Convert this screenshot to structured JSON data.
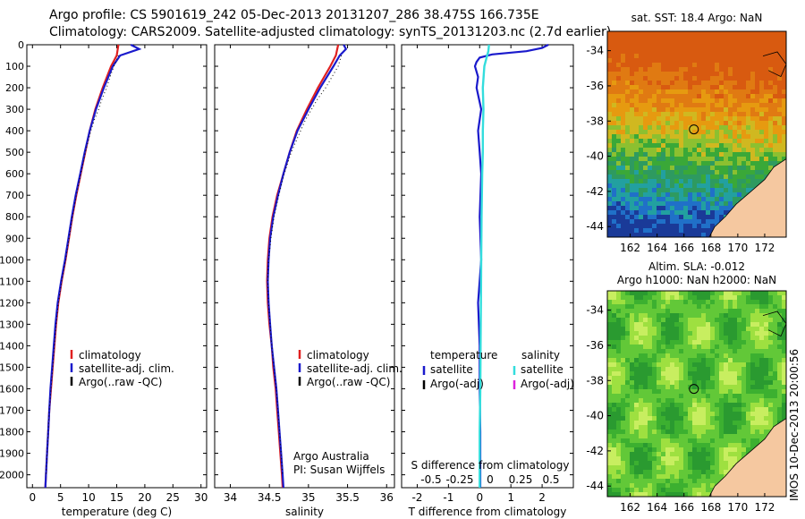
{
  "header": {
    "line1": "Argo profile: CS 5901619_242 05-Dec-2013 20131207_286 38.475S 166.735E",
    "line2": "Climatology: CARS2009. Satellite-adjusted climatology: synTS_20131203.nc (2.7d earlier)"
  },
  "side_stamp": "IMOS 10-Dec-2013 20:00:56",
  "colors": {
    "climatology": "#e02020",
    "satellite": "#1a1acc",
    "argo": "#000000",
    "salinity_satellite": "#33dddd",
    "salinity_argo": "#dd22dd",
    "land": "#f5c8a0"
  },
  "chart_data": [
    {
      "type": "line",
      "xlabel": "temperature (deg C)",
      "ylabel": "",
      "xlim": [
        -1,
        31
      ],
      "ylim": [
        2060,
        0
      ],
      "xticks": [
        0,
        5,
        10,
        15,
        20,
        25,
        30
      ],
      "yticks": [
        0,
        100,
        200,
        300,
        400,
        500,
        600,
        700,
        800,
        900,
        1000,
        1100,
        1200,
        1300,
        1400,
        1500,
        1600,
        1700,
        1800,
        1900,
        2000
      ],
      "legend": [
        "climatology",
        "satellite-adj. clim.",
        "Argo(..raw -QC)"
      ],
      "legend_placement": "lower-center",
      "series": [
        {
          "name": "climatology",
          "depth": [
            0,
            50,
            100,
            200,
            300,
            400,
            500,
            600,
            700,
            800,
            900,
            1000,
            1100,
            1200,
            1300,
            1400,
            1500,
            1600,
            1700,
            1800,
            1900,
            2000,
            2060
          ],
          "values": [
            15.3,
            15.0,
            14.0,
            12.5,
            11.2,
            10.2,
            9.4,
            8.6,
            7.8,
            7.1,
            6.5,
            5.9,
            5.2,
            4.6,
            4.2,
            3.9,
            3.6,
            3.3,
            3.0,
            2.8,
            2.6,
            2.4,
            2.3
          ]
        },
        {
          "name": "satellite-adj. clim.",
          "depth": [
            0,
            20,
            50,
            100,
            200,
            300,
            400,
            500,
            600,
            700,
            800,
            900,
            1000,
            1100,
            1200,
            1300,
            1400,
            1500,
            1600,
            1700,
            1800,
            1900,
            2000,
            2060
          ],
          "values": [
            17.5,
            19.0,
            15.6,
            14.3,
            12.7,
            11.3,
            10.2,
            9.3,
            8.5,
            7.7,
            7.0,
            6.4,
            5.8,
            5.1,
            4.5,
            4.1,
            3.8,
            3.5,
            3.2,
            3.0,
            2.8,
            2.6,
            2.4,
            2.3
          ]
        },
        {
          "name": "Argo(..raw -QC)",
          "depth": [
            50,
            100,
            150,
            200,
            250,
            300,
            350,
            400,
            450,
            500,
            600,
            700,
            800,
            900,
            1000,
            1100,
            1200,
            1300,
            1400,
            1500,
            1600,
            1700,
            1800,
            1900,
            2000
          ],
          "values": [
            15.3,
            14.5,
            13.8,
            13.2,
            12.4,
            11.8,
            11.0,
            10.4,
            9.9,
            9.4,
            8.6,
            7.8,
            7.1,
            6.5,
            5.9,
            5.2,
            4.6,
            4.2,
            3.9,
            3.6,
            3.3,
            3.0,
            2.8,
            2.6,
            2.4
          ]
        }
      ]
    },
    {
      "type": "line",
      "xlabel": "salinity",
      "ylabel": "",
      "xlim": [
        33.8,
        36.1
      ],
      "ylim": [
        2060,
        0
      ],
      "xticks": [
        34,
        34.5,
        35,
        35.5,
        36
      ],
      "legend": [
        "climatology",
        "satellite-adj. clim.",
        "Argo(..raw -QC)"
      ],
      "legend_placement": "lower-right",
      "annotation": [
        "Argo Australia",
        "PI: Susan Wijffels"
      ],
      "series": [
        {
          "name": "climatology",
          "depth": [
            0,
            50,
            100,
            200,
            300,
            400,
            500,
            600,
            700,
            800,
            900,
            1000,
            1100,
            1200,
            1300,
            1400,
            1500,
            1600,
            1700,
            1800,
            1900,
            2000,
            2060
          ],
          "values": [
            35.38,
            35.35,
            35.28,
            35.12,
            34.98,
            34.85,
            34.76,
            34.68,
            34.6,
            34.54,
            34.5,
            34.48,
            34.47,
            34.48,
            34.5,
            34.53,
            34.55,
            34.58,
            34.6,
            34.62,
            34.64,
            34.66,
            34.67
          ]
        },
        {
          "name": "satellite-adj. clim.",
          "depth": [
            0,
            20,
            50,
            100,
            200,
            300,
            400,
            500,
            600,
            700,
            800,
            900,
            1000,
            1100,
            1200,
            1300,
            1400,
            1500,
            1600,
            1700,
            1800,
            1900,
            2000,
            2060
          ],
          "values": [
            35.45,
            35.48,
            35.4,
            35.32,
            35.15,
            35.0,
            34.86,
            34.76,
            34.68,
            34.61,
            34.55,
            34.51,
            34.49,
            34.48,
            34.49,
            34.51,
            34.53,
            34.56,
            34.59,
            34.61,
            34.63,
            34.65,
            34.67,
            34.68
          ]
        },
        {
          "name": "Argo(..raw -QC)",
          "depth": [
            50,
            100,
            150,
            200,
            250,
            300,
            350,
            400,
            500,
            600,
            700,
            800,
            900,
            1000,
            1100,
            1200,
            1300,
            1400,
            1500,
            1600,
            1700,
            1800,
            1900,
            2000
          ],
          "values": [
            35.42,
            35.38,
            35.3,
            35.22,
            35.12,
            35.04,
            34.96,
            34.9,
            34.78,
            34.69,
            34.62,
            34.56,
            34.52,
            34.49,
            34.48,
            34.49,
            34.51,
            34.53,
            34.56,
            34.59,
            34.61,
            34.63,
            34.65,
            34.67
          ]
        }
      ]
    },
    {
      "type": "line",
      "xlabel": "T difference from climatology",
      "xlabel_top": "S difference from climatology",
      "xlim": [
        -2.5,
        3.0
      ],
      "ylim": [
        2060,
        0
      ],
      "xticks": [
        -2,
        -1,
        0,
        1,
        2
      ],
      "xticks_s": [
        "-0.5",
        "-0.25",
        "0",
        "0.25",
        "0.5"
      ],
      "legend_temperature_title": "temperature",
      "legend_salinity_title": "salinity",
      "legend_temperature": [
        "satellite",
        "Argo(-adj)"
      ],
      "legend_salinity": [
        "satellite",
        "Argo(-adj)"
      ],
      "legend_placement": "lower-center",
      "series": [
        {
          "name": "satellite",
          "depth": [
            0,
            15,
            30,
            45,
            60,
            80,
            100,
            150,
            200,
            300,
            400,
            500,
            600,
            800,
            1000,
            1200,
            1400,
            1600,
            1800,
            2000,
            2060
          ],
          "values": [
            2.2,
            2.0,
            1.5,
            0.4,
            0.0,
            -0.1,
            -0.15,
            -0.05,
            -0.1,
            0.05,
            -0.05,
            0.0,
            0.05,
            0.0,
            0.05,
            -0.05,
            0.0,
            0.0,
            0.02,
            0.02,
            0.02
          ]
        },
        {
          "name": "salinity satellite",
          "depth": [
            0,
            30,
            60,
            100,
            200,
            300,
            400,
            500,
            600,
            800,
            1000,
            1200,
            1400,
            1600,
            1800,
            2000,
            2060
          ],
          "values": [
            0.3,
            0.28,
            0.22,
            0.15,
            0.1,
            0.12,
            0.1,
            0.1,
            0.08,
            0.06,
            0.05,
            0.04,
            0.03,
            0.02,
            0.0,
            0.0,
            0.0
          ]
        }
      ]
    }
  ],
  "maps": [
    {
      "title": "sat. SST: 18.4 Argo: NaN",
      "xticks": [
        "162",
        "164",
        "166",
        "168",
        "170",
        "172"
      ],
      "yticks": [
        "-34",
        "-36",
        "-38",
        "-40",
        "-42",
        "-44"
      ],
      "marker": {
        "lon": 166.735,
        "lat": -38.475
      }
    },
    {
      "title_line1": "Altim. SLA: -0.012",
      "title_line2": "Argo h1000: NaN h2000: NaN",
      "xticks": [
        "162",
        "164",
        "166",
        "168",
        "170",
        "172"
      ],
      "yticks": [
        "-34",
        "-36",
        "-38",
        "-40",
        "-42",
        "-44"
      ],
      "marker": {
        "lon": 166.735,
        "lat": -38.475
      }
    }
  ]
}
